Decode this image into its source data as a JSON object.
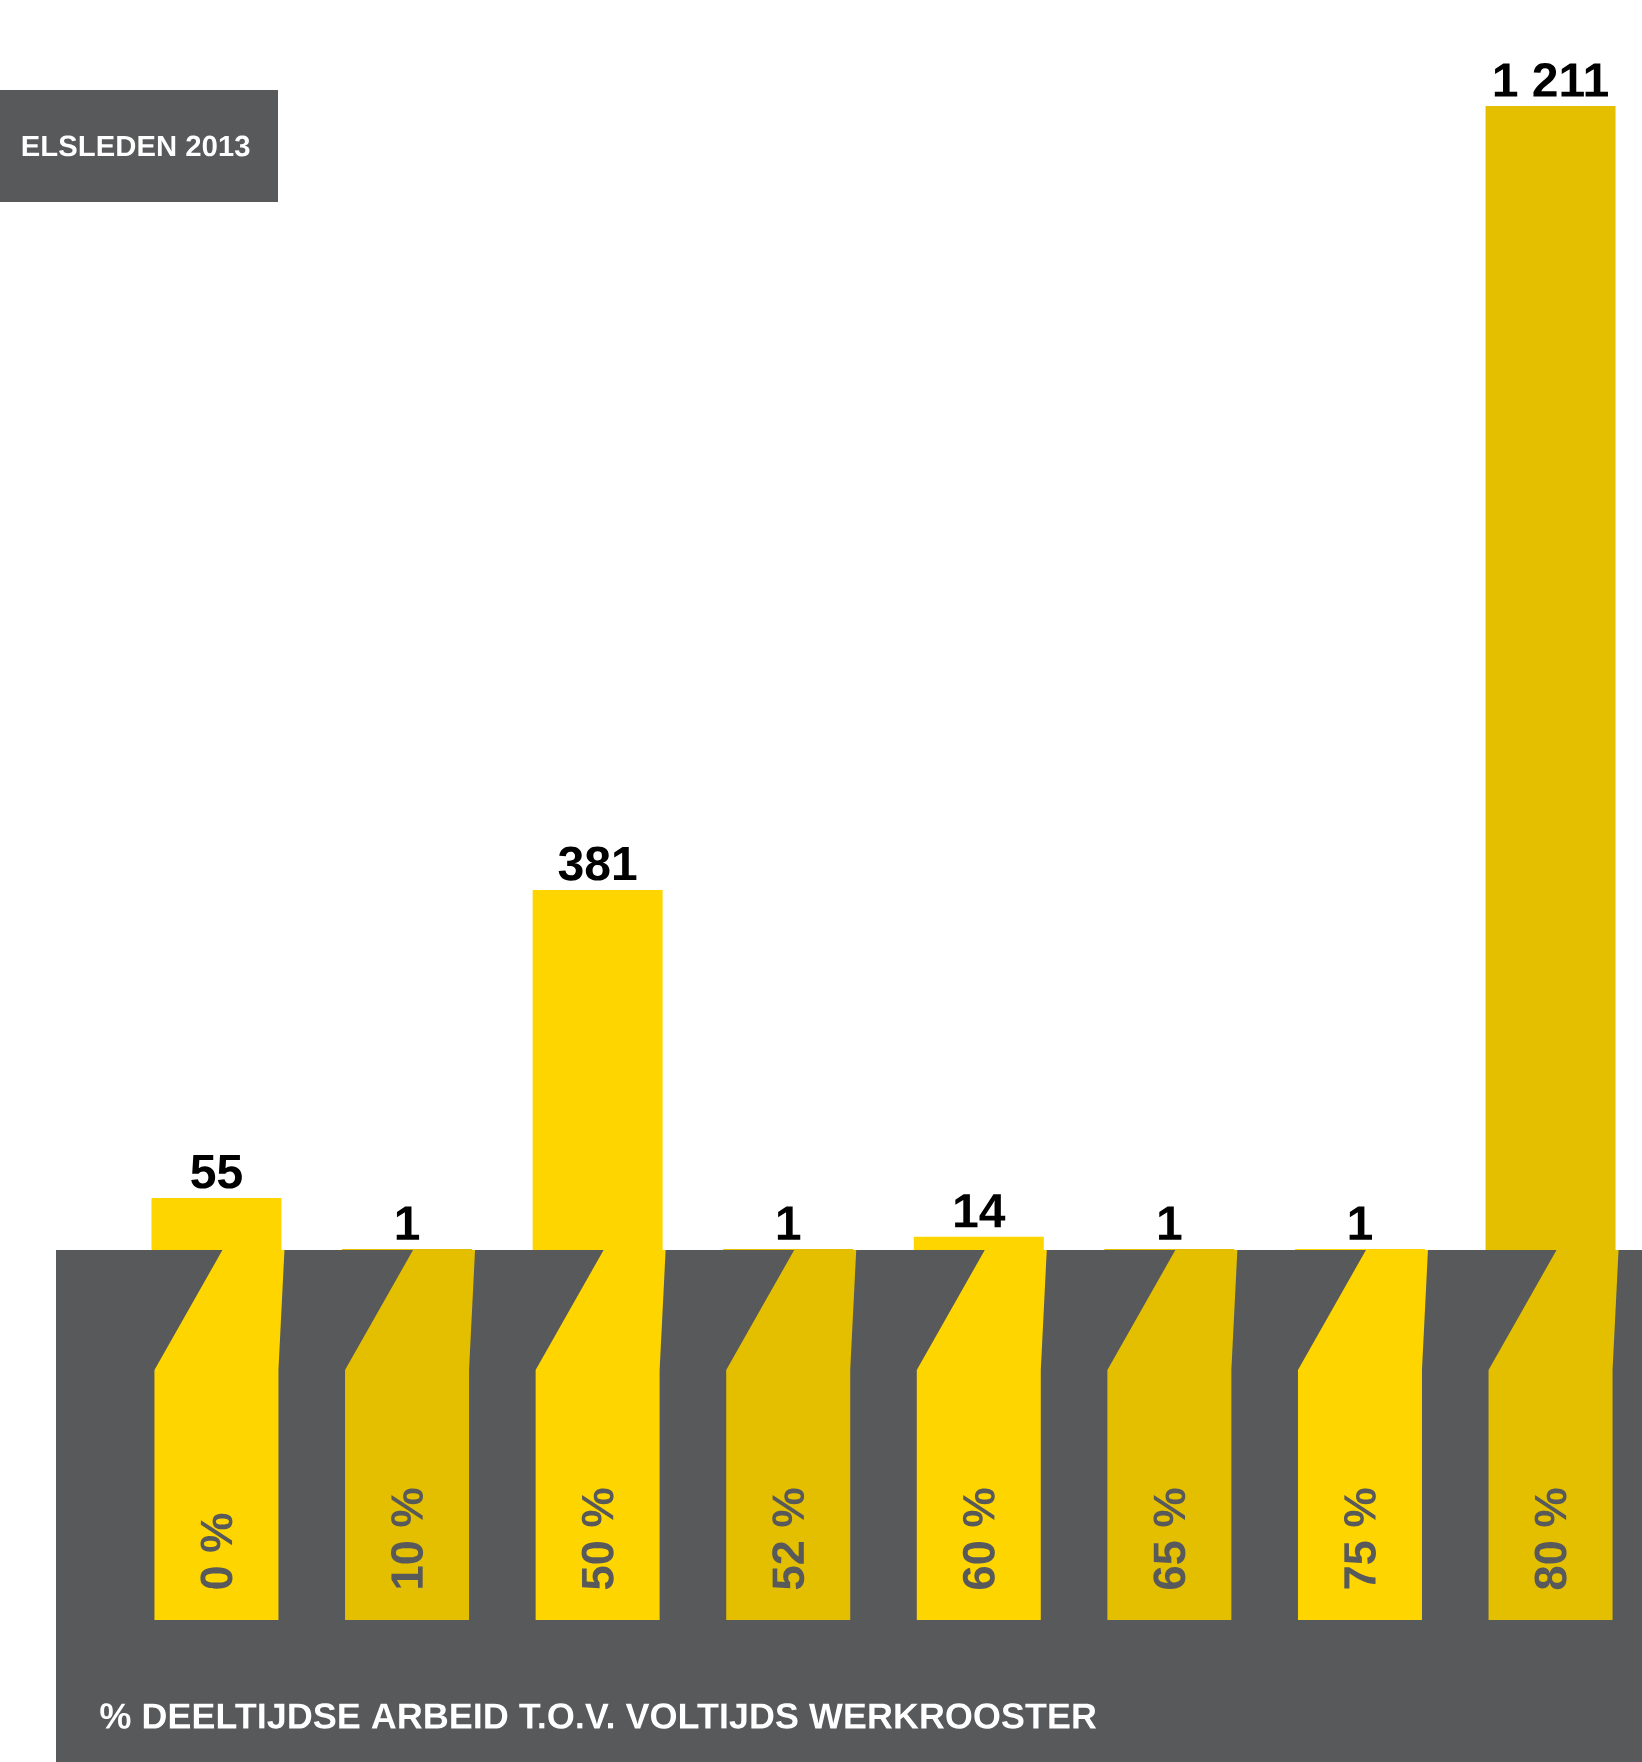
{
  "chart_data": {
    "type": "bar",
    "title": "ELSLEDEN 2013",
    "xlabel": "% DEELTIJDSE ARBEID T.O.V. VOLTIJDS WERKROOSTER",
    "categories": [
      "0 %",
      "10 %",
      "50 %",
      "52 %",
      "60 %",
      "65 %",
      "75 %",
      "80 %"
    ],
    "values": [
      55,
      1,
      381,
      1,
      14,
      1,
      1,
      1211
    ],
    "value_labels": [
      "55",
      "1",
      "381",
      "1",
      "14",
      "1",
      "1",
      "1 211"
    ],
    "colors": [
      "#ffd500",
      "#e3bf00",
      "#ffd500",
      "#e3bf00",
      "#ffd500",
      "#e3bf00",
      "#ffd500",
      "#e3bf00"
    ]
  }
}
